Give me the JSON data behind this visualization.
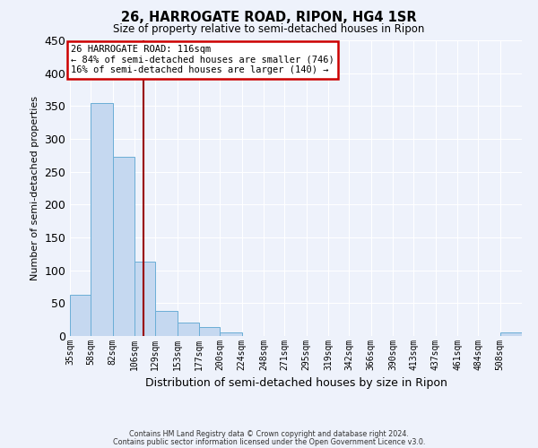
{
  "title": "26, HARROGATE ROAD, RIPON, HG4 1SR",
  "subtitle": "Size of property relative to semi-detached houses in Ripon",
  "xlabel": "Distribution of semi-detached houses by size in Ripon",
  "ylabel": "Number of semi-detached properties",
  "bin_labels": [
    "35sqm",
    "58sqm",
    "82sqm",
    "106sqm",
    "129sqm",
    "153sqm",
    "177sqm",
    "200sqm",
    "224sqm",
    "248sqm",
    "271sqm",
    "295sqm",
    "319sqm",
    "342sqm",
    "366sqm",
    "390sqm",
    "413sqm",
    "437sqm",
    "461sqm",
    "484sqm",
    "508sqm"
  ],
  "bar_heights": [
    63,
    354,
    273,
    113,
    38,
    20,
    14,
    6,
    0,
    0,
    0,
    0,
    0,
    0,
    0,
    0,
    0,
    0,
    0,
    0,
    5
  ],
  "bar_color": "#c5d8f0",
  "bar_edge_color": "#6baed6",
  "vline_x": 116,
  "vline_color": "#990000",
  "annotation_title": "26 HARROGATE ROAD: 116sqm",
  "annotation_line1": "← 84% of semi-detached houses are smaller (746)",
  "annotation_line2": "16% of semi-detached houses are larger (140) →",
  "annotation_box_color": "#ffffff",
  "annotation_box_edge": "#cc0000",
  "ylim": [
    0,
    450
  ],
  "bin_edges": [
    35,
    58,
    82,
    106,
    129,
    153,
    177,
    200,
    224,
    248,
    271,
    295,
    319,
    342,
    366,
    390,
    413,
    437,
    461,
    484,
    508
  ],
  "footer1": "Contains HM Land Registry data © Crown copyright and database right 2024.",
  "footer2": "Contains public sector information licensed under the Open Government Licence v3.0.",
  "background_color": "#eef2fb"
}
